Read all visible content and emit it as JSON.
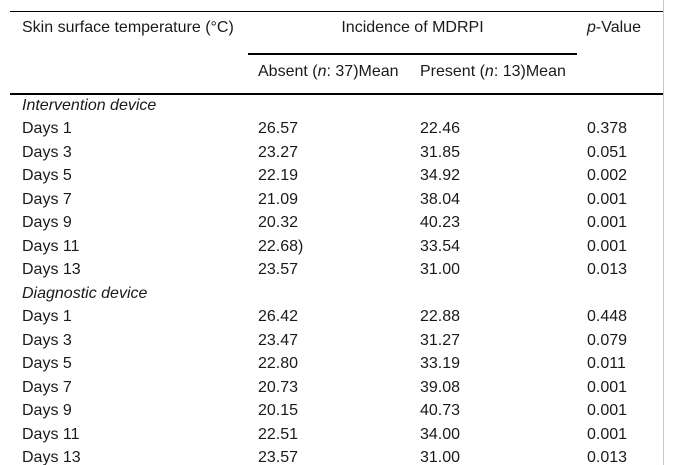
{
  "table": {
    "columns": {
      "col1": "Skin surface temperature (°C)",
      "group": "Incidence of MDRPI",
      "absent": {
        "pre": "Absent (",
        "n": "n",
        "post": ": 37)Mean"
      },
      "present": {
        "pre": "Present (",
        "n": "n",
        "post": ": 13)Mean"
      },
      "pvalue": {
        "italic": "p",
        "rest": "-Value"
      }
    },
    "sections": [
      {
        "label": "Intervention device",
        "rows": [
          {
            "label": "Days 1",
            "absent": "26.57",
            "present": "22.46",
            "p": "0.378"
          },
          {
            "label": "Days 3",
            "absent": "23.27",
            "present": "31.85",
            "p": "0.051"
          },
          {
            "label": "Days 5",
            "absent": "22.19",
            "present": "34.92",
            "p": "0.002"
          },
          {
            "label": "Days 7",
            "absent": "21.09",
            "present": "38.04",
            "p": "0.001"
          },
          {
            "label": "Days 9",
            "absent": "20.32",
            "present": "40.23",
            "p": "0.001"
          },
          {
            "label": "Days 11",
            "absent": "22.68)",
            "present": "33.54",
            "p": "0.001"
          },
          {
            "label": "Days 13",
            "absent": "23.57",
            "present": "31.00",
            "p": "0.013"
          }
        ]
      },
      {
        "label": "Diagnostic device",
        "rows": [
          {
            "label": "Days 1",
            "absent": "26.42",
            "present": "22.88",
            "p": "0.448"
          },
          {
            "label": "Days 3",
            "absent": "23.47",
            "present": "31.27",
            "p": "0.079"
          },
          {
            "label": "Days 5",
            "absent": "22.80",
            "present": "33.19",
            "p": "0.011"
          },
          {
            "label": "Days 7",
            "absent": "20.73",
            "present": "39.08",
            "p": "0.001"
          },
          {
            "label": "Days 9",
            "absent": "20.15",
            "present": "40.73",
            "p": "0.001"
          },
          {
            "label": "Days 11",
            "absent": "22.51",
            "present": "34.00",
            "p": "0.001"
          },
          {
            "label": "Days 13",
            "absent": "23.57",
            "present": "31.00",
            "p": "0.013"
          }
        ]
      }
    ]
  },
  "colors": {
    "rule": "#000000",
    "text": "#1a1a1a",
    "edge_line": "#c8c8c8",
    "background": "#ffffff"
  }
}
